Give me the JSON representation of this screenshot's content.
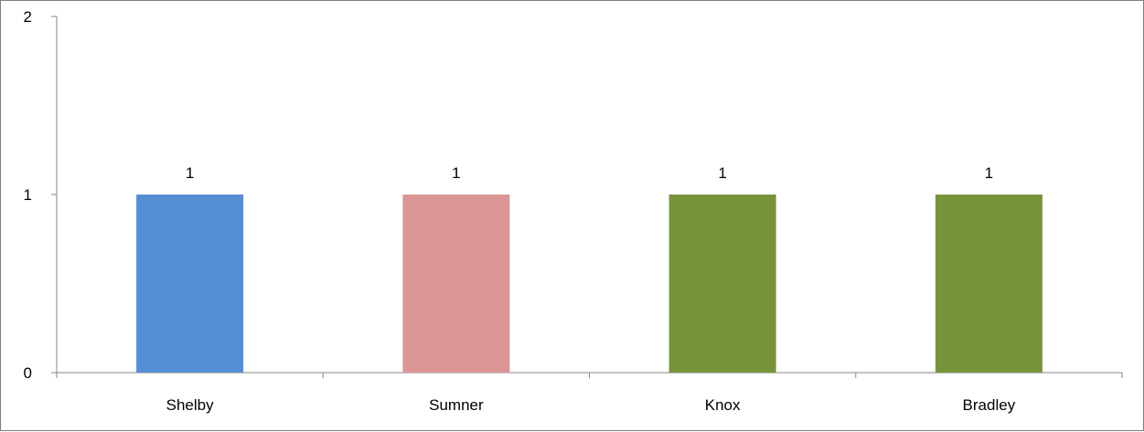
{
  "chart_data": {
    "type": "bar",
    "categories": [
      "Shelby",
      "Sumner",
      "Knox",
      "Bradley"
    ],
    "values": [
      1,
      1,
      1,
      1
    ],
    "data_labels": [
      "1",
      "1",
      "1",
      "1"
    ],
    "bar_colors": [
      "#558ed5",
      "#d99694",
      "#77933c",
      "#77933c"
    ],
    "ylim": [
      0,
      2
    ],
    "y_ticks": [
      0,
      1,
      2
    ],
    "y_tick_labels": [
      "0",
      "1",
      "2"
    ],
    "grid": false,
    "legend": "none",
    "title": "",
    "xlabel": "",
    "ylabel": ""
  }
}
